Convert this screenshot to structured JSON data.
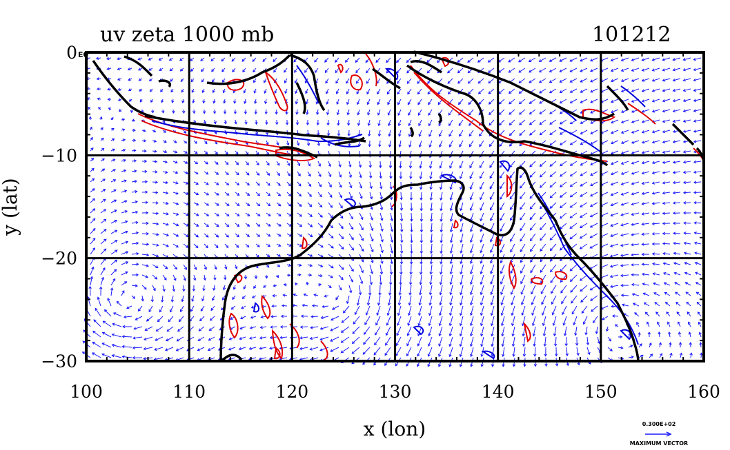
{
  "plot": {
    "title_left": "uv zeta 1000 mb",
    "title_right": "101212",
    "xlabel": "x (lon)",
    "ylabel": "y (lat)",
    "corner_label": "E0",
    "x_ticks": [
      "100",
      "110",
      "120",
      "130",
      "140",
      "150",
      "160"
    ],
    "y_ticks": [
      "0",
      "−10",
      "−20",
      "−30"
    ],
    "xlim": [
      100,
      160
    ],
    "ylim": [
      -30,
      0
    ],
    "grid": true,
    "vector_reference_value": "0.300E+02",
    "vector_reference_label": "MAXIMUM VECTOR"
  },
  "colors": {
    "vectors": "#1a1aff",
    "positive_contour": "#e00000",
    "negative_contour": "#0000dd",
    "coastline": "#000000",
    "gridlines": "#000000"
  }
}
